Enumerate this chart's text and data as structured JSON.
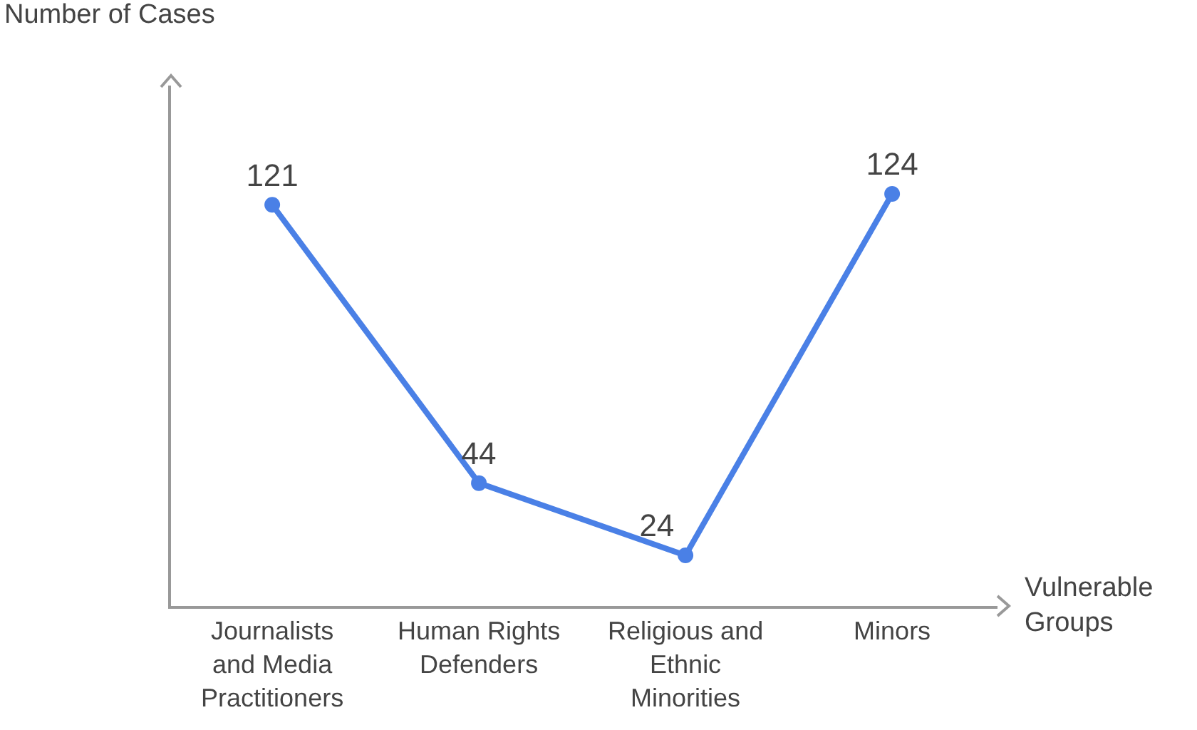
{
  "chart_data": {
    "type": "line",
    "xlabel": "Vulnerable Groups",
    "ylabel": "Number of Cases",
    "categories": [
      "Journalists and Media Practitioners",
      "Human Rights Defenders",
      "Religious and Ethnic Minorities",
      "Minors"
    ],
    "values": [
      121,
      44,
      24,
      124
    ],
    "color": "#4a80e6",
    "ylim": [
      10,
      154
    ],
    "data_labels": true,
    "marker": "circle",
    "line_style": "solid",
    "grid": false,
    "legend": false
  }
}
